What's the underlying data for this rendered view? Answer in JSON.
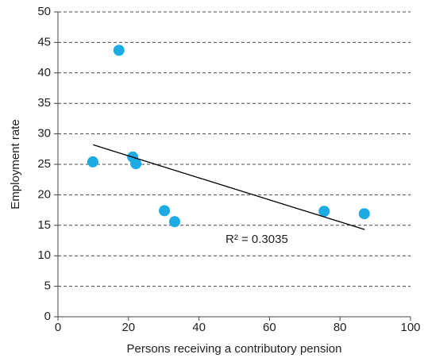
{
  "chart_data": {
    "type": "scatter",
    "x_label": "Persons receiving a contributory pension",
    "y_label": "Employment rate",
    "x": [
      17.3,
      9.9,
      21.2,
      22.1,
      30.2,
      33.1,
      75.5,
      86.9
    ],
    "values": [
      43.7,
      25.4,
      26.2,
      25.1,
      17.4,
      15.6,
      17.3,
      16.9
    ],
    "color": "#1cabe2",
    "trendline": {
      "x": [
        10,
        87
      ],
      "y": [
        28.2,
        14.3
      ],
      "color": "#000000"
    },
    "annotation": "R² = 0.3035",
    "xlim": [
      0,
      100
    ],
    "xticks": [
      0,
      20,
      40,
      60,
      80,
      100
    ],
    "ylim": [
      0,
      50
    ],
    "yticks": [
      0,
      5,
      10,
      15,
      20,
      25,
      30,
      35,
      40,
      45,
      50
    ],
    "grid": true
  }
}
